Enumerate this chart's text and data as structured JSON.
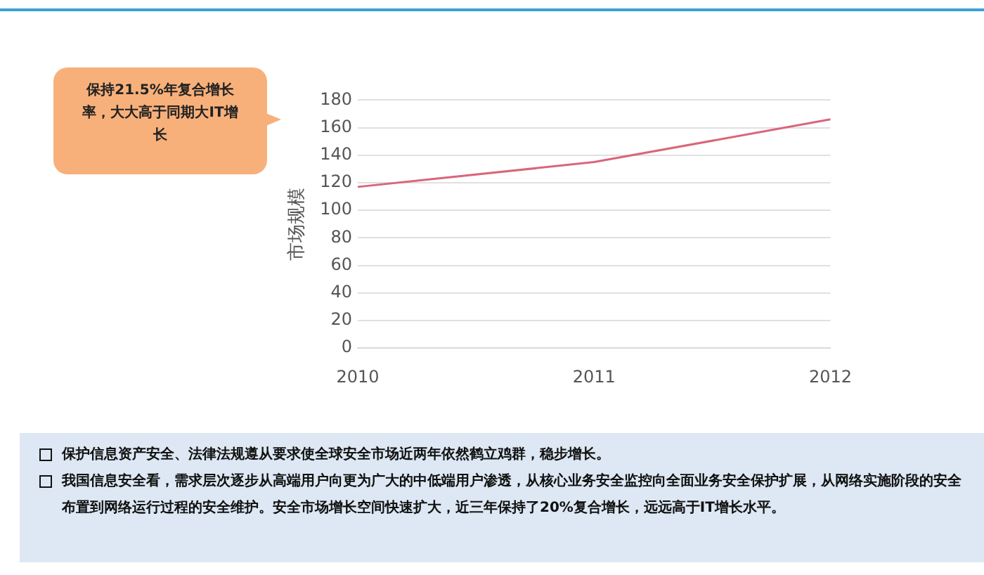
{
  "chart_data": {
    "type": "line",
    "ylabel": "市场规模",
    "categories": [
      "2010",
      "2011",
      "2012"
    ],
    "series": [
      {
        "color": "#d9667a",
        "values": [
          117,
          135,
          166
        ]
      }
    ],
    "ylim": [
      0,
      180
    ],
    "yticks": [
      0,
      20,
      40,
      60,
      80,
      100,
      120,
      140,
      160,
      180
    ],
    "grid": "y",
    "legend": false,
    "marker": "none",
    "annotations": [
      "保持21.5%年复合增长率，大大高于同期大IT增长",
      "保护信息资产安全、法律法规遵从要求使全球安全市场近两年依然鹤立鸡群，稳步增长。",
      "我国信息安全看，需求层次逐步从高端用户向更为广大的中低端用户渗透，从核心业务安全监控向全面业务安全保护扩展，从网络实施阶段的安全布置到网络运行过程的安全维护。安全市场增长空间快速扩大，近三年保持了20%复合增长，远远高于IT增长水平。"
    ]
  }
}
